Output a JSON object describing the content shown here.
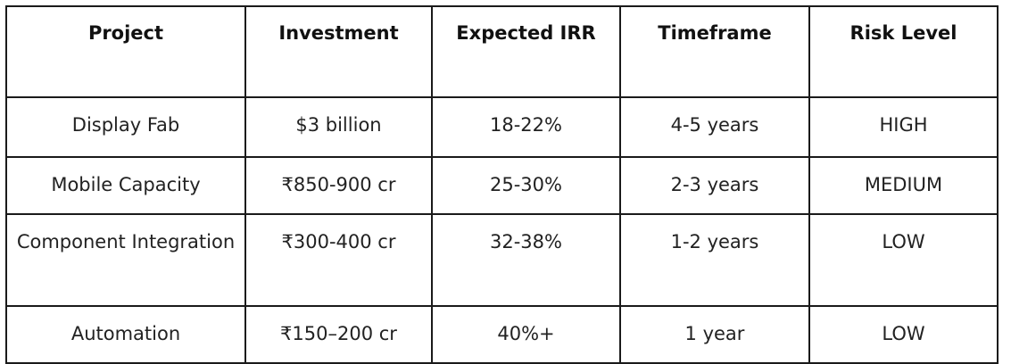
{
  "table": {
    "headers": [
      "Project",
      "Investment",
      "Expected IRR",
      "Timeframe",
      "Risk Level"
    ],
    "rows": [
      [
        "Display Fab",
        "$3 billion",
        "18-22%",
        "4-5 years",
        "HIGH"
      ],
      [
        "Mobile Capacity",
        "₹850-900 cr",
        "25-30%",
        "2-3 years",
        "MEDIUM"
      ],
      [
        "Component Integration",
        "₹300-400 cr",
        "32-38%",
        "1-2 years",
        "LOW"
      ],
      [
        "Automation",
        "₹150–200 cr",
        "40%+",
        "1 year",
        "LOW"
      ]
    ]
  }
}
